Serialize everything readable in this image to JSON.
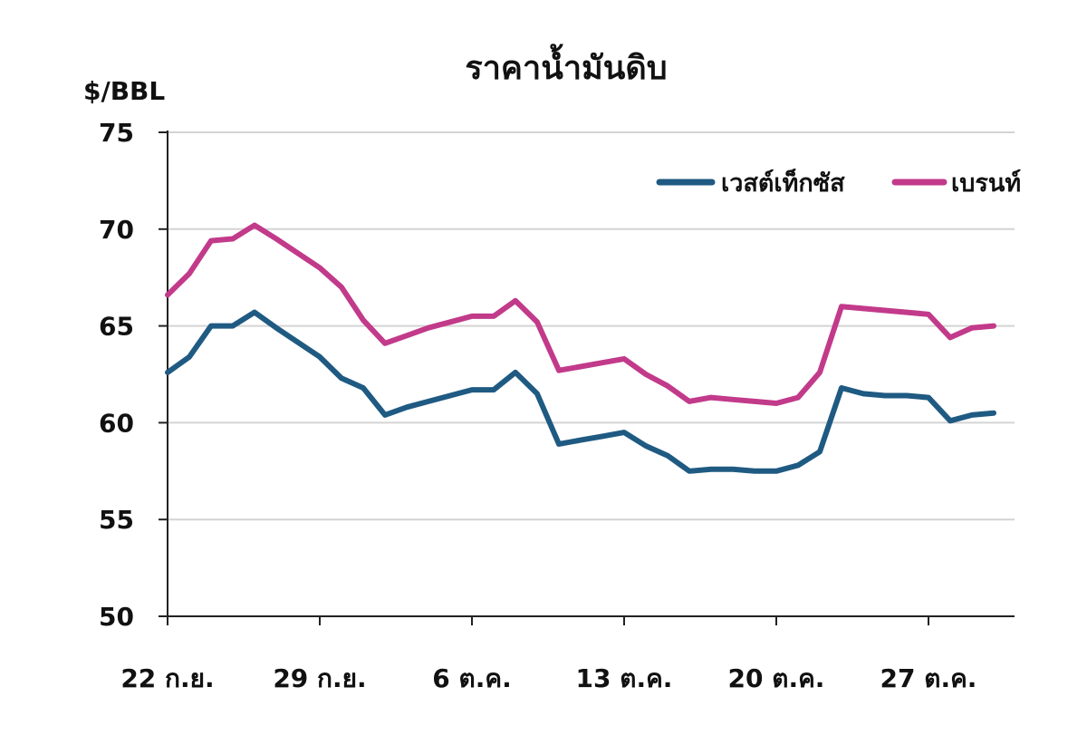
{
  "chart_data": {
    "type": "line",
    "title": "ราคาน้ำมันดิบ",
    "ylabel": "$/BBL",
    "xlabel": "",
    "ylim": [
      50,
      75
    ],
    "yticks": [
      50,
      55,
      60,
      65,
      70,
      75
    ],
    "xtick_labels": [
      "22 ก.ย.",
      "29 ก.ย.",
      "6 ต.ค.",
      "13 ต.ค.",
      "20 ต.ค.",
      "27 ต.ค."
    ],
    "xtick_index": [
      0,
      7,
      14,
      21,
      28,
      35
    ],
    "x_count": 39,
    "grid": true,
    "legend_position": "top-right",
    "series": [
      {
        "name": "เวสต์เท็กซัส",
        "color": "#1f5a82",
        "x": [
          0,
          1,
          2,
          3,
          4,
          5,
          7,
          8,
          9,
          10,
          11,
          12,
          13,
          14,
          15,
          16,
          17,
          18,
          19,
          20,
          21,
          22,
          23,
          24,
          25,
          26,
          27,
          28,
          29,
          30,
          31,
          32,
          33,
          34,
          35,
          36,
          37,
          38
        ],
        "values": [
          62.6,
          63.4,
          65.0,
          65.0,
          65.7,
          64.9,
          63.4,
          62.3,
          61.8,
          60.4,
          60.8,
          61.1,
          61.4,
          61.7,
          61.7,
          62.6,
          61.5,
          58.9,
          59.1,
          59.3,
          59.5,
          58.8,
          58.3,
          57.5,
          57.6,
          57.6,
          57.5,
          57.5,
          57.8,
          58.5,
          61.8,
          61.5,
          61.4,
          61.4,
          61.3,
          60.1,
          60.4,
          60.5
        ]
      },
      {
        "name": "เบรนท์",
        "color": "#c23a8a",
        "x": [
          0,
          1,
          2,
          3,
          4,
          5,
          7,
          8,
          9,
          10,
          11,
          12,
          13,
          14,
          15,
          16,
          17,
          18,
          19,
          20,
          21,
          22,
          23,
          24,
          25,
          26,
          27,
          28,
          29,
          30,
          31,
          32,
          33,
          34,
          35,
          36,
          37,
          38
        ],
        "values": [
          66.6,
          67.7,
          69.4,
          69.5,
          70.2,
          69.5,
          68.0,
          67.0,
          65.3,
          64.1,
          64.5,
          64.9,
          65.2,
          65.5,
          65.5,
          66.3,
          65.2,
          62.7,
          62.9,
          63.1,
          63.3,
          62.5,
          61.9,
          61.1,
          61.3,
          61.2,
          61.1,
          61.0,
          61.3,
          62.6,
          66.0,
          65.9,
          65.8,
          65.7,
          65.6,
          64.4,
          64.9,
          65.0
        ]
      }
    ]
  }
}
